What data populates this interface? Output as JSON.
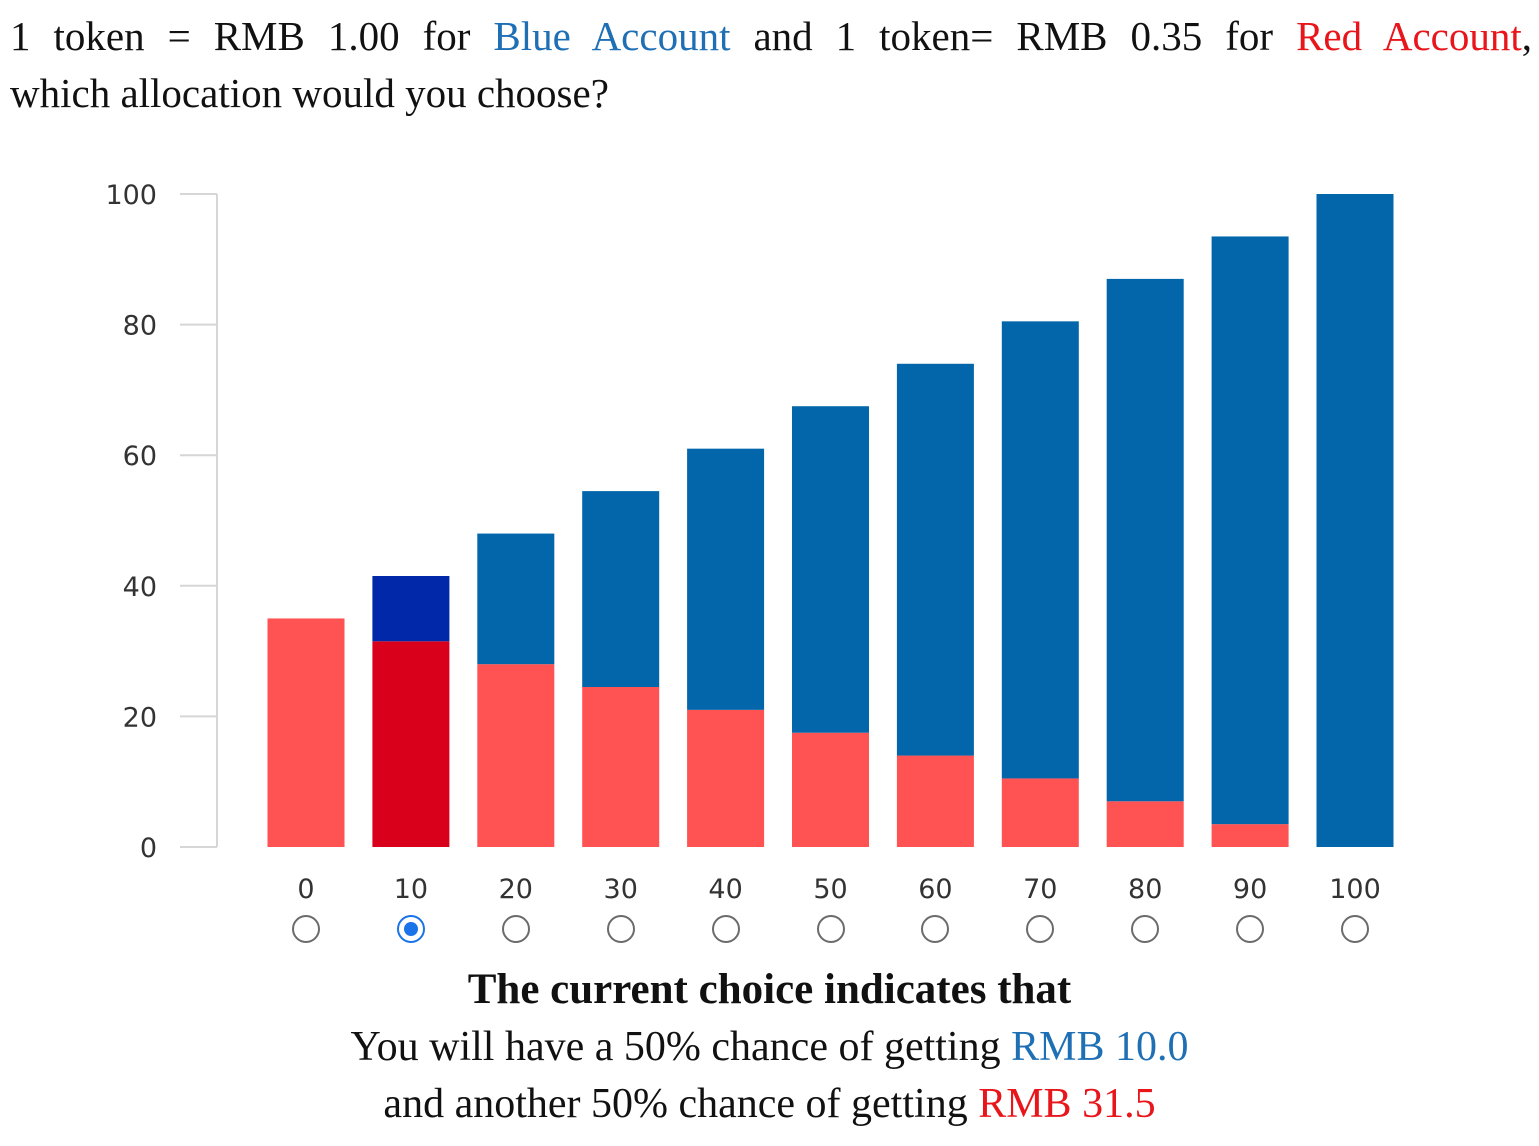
{
  "question": {
    "part1": "1 token = RMB 1.00 for ",
    "blue_account": "Blue Account",
    "part2": " and 1 token= RMB 0.35 for ",
    "red_account": "Red Account",
    "part3": ",",
    "line2": "which allocation would you choose?"
  },
  "chart_data": {
    "type": "bar",
    "stacked": true,
    "categories": [
      "0",
      "10",
      "20",
      "30",
      "40",
      "50",
      "60",
      "70",
      "80",
      "90",
      "100"
    ],
    "series": [
      {
        "values": [
          35,
          31.5,
          28,
          24.5,
          21,
          17.5,
          14,
          10.5,
          7,
          3.5,
          0
        ]
      },
      {
        "values": [
          0,
          10,
          20,
          30,
          40,
          50,
          60,
          70,
          80,
          90,
          100
        ]
      }
    ],
    "ylim": [
      0,
      100
    ],
    "yticks": [
      0,
      20,
      40,
      60,
      80,
      100
    ],
    "selected_index": 1,
    "colors": {
      "red": "#ff5252",
      "blue": "#0366aa",
      "red_selected": "#d9001b",
      "blue_selected": "#0028a8"
    },
    "grid": false
  },
  "summary": {
    "title": "The current choice indicates that",
    "line1_prefix": "You will have a 50% chance of getting ",
    "line1_value": "RMB 10.0",
    "line2_prefix": "and another 50% chance of getting ",
    "line2_value": "RMB 31.5"
  }
}
